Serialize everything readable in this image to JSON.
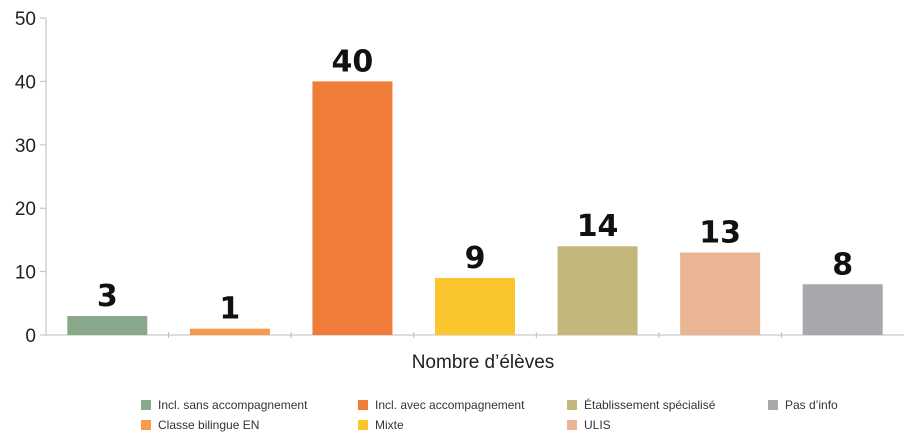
{
  "chart_data": {
    "type": "bar",
    "categories": [
      "Incl. sans accompagnement",
      "Classe bilingue EN",
      "Incl. avec accompagnement",
      "Mixte",
      "Établissement spécialisé",
      "ULIS",
      "Pas d’info"
    ],
    "values": [
      3,
      1,
      40,
      9,
      14,
      13,
      8
    ],
    "colors": [
      "#8aa98a",
      "#f79a4e",
      "#f07c3a",
      "#fbc62d",
      "#c4b77b",
      "#e9b592",
      "#a7a8ab"
    ],
    "xlabel": "Nombre d’élèves",
    "ylabel": "",
    "ylim": [
      0,
      50
    ],
    "yticks": [
      0,
      10,
      20,
      30,
      40,
      50
    ],
    "grid": false,
    "data_labels": true,
    "legend": {
      "placement": "bottom",
      "order": [
        "Incl. sans accompagnement",
        "Incl. avec accompagnement",
        "Établissement spécialisé",
        "Pas d’info",
        "Classe bilingue EN",
        "Mixte",
        "ULIS"
      ]
    }
  }
}
